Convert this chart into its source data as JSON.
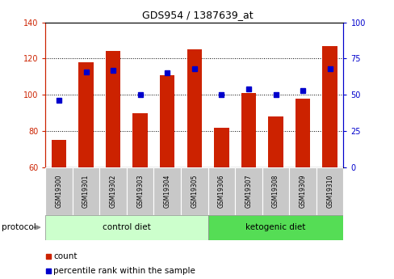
{
  "title": "GDS954 / 1387639_at",
  "samples": [
    "GSM19300",
    "GSM19301",
    "GSM19302",
    "GSM19303",
    "GSM19304",
    "GSM19305",
    "GSM19306",
    "GSM19307",
    "GSM19308",
    "GSM19309",
    "GSM19310"
  ],
  "counts": [
    75,
    118,
    124,
    90,
    111,
    125,
    82,
    101,
    88,
    98,
    127
  ],
  "percentile_ranks": [
    46,
    66,
    67,
    50,
    65,
    68,
    50,
    54,
    50,
    53,
    68
  ],
  "ylim_left": [
    60,
    140
  ],
  "ylim_right": [
    0,
    100
  ],
  "y_ticks_left": [
    60,
    80,
    100,
    120,
    140
  ],
  "y_ticks_right": [
    0,
    25,
    50,
    75,
    100
  ],
  "bar_color": "#cc2200",
  "dot_color": "#0000cc",
  "bar_bottom": 60,
  "control_label": "control diet",
  "ketogenic_label": "ketogenic diet",
  "protocol_label": "protocol",
  "legend_count_label": "count",
  "legend_percentile_label": "percentile rank within the sample",
  "control_bg": "#ccffcc",
  "ketogenic_bg": "#55dd55",
  "axis_bg": "#ffffff",
  "tick_bg": "#c8c8c8",
  "border_color": "#888888"
}
